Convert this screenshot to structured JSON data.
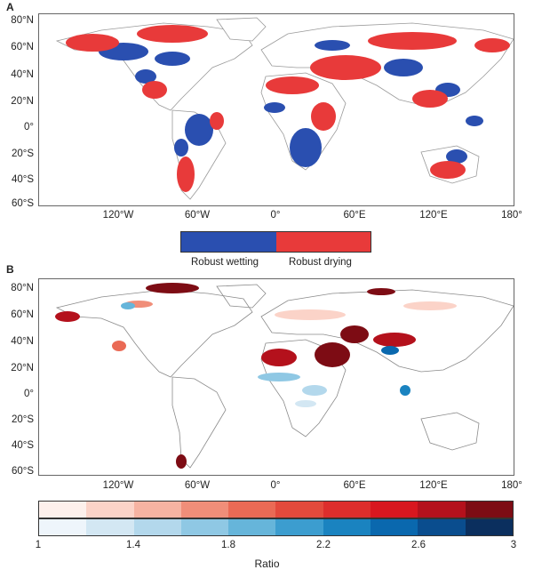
{
  "panelA": {
    "letter": "A",
    "lat_labels": [
      "80°N",
      "60°N",
      "40°N",
      "20°N",
      "0°",
      "20°S",
      "40°S",
      "60°S"
    ],
    "lon_labels": [
      "120°W",
      "60°W",
      "0°",
      "60°E",
      "120°E",
      "180°"
    ],
    "legend": [
      {
        "label": "Robust wetting",
        "color": "#2a4fb0"
      },
      {
        "label": "Robust drying",
        "color": "#e83a3a"
      }
    ]
  },
  "panelB": {
    "letter": "B",
    "lat_labels": [
      "80°N",
      "60°N",
      "40°N",
      "20°N",
      "0°",
      "20°S",
      "40°S",
      "60°S"
    ],
    "lon_labels": [
      "120°W",
      "60°W",
      "0°",
      "60°E",
      "120°E",
      "180°"
    ],
    "colorbar": {
      "title": "Ratio",
      "ticks": [
        "1",
        "1.4",
        "1.8",
        "2.2",
        "2.6",
        "3"
      ],
      "red_scale": [
        "#fdf0ec",
        "#fbd3c8",
        "#f6b3a2",
        "#f08e79",
        "#ea6a55",
        "#e34a3c",
        "#dd2e2c",
        "#d8171f",
        "#b4111c",
        "#7d0c14"
      ],
      "blue_scale": [
        "#eef5fb",
        "#d3e7f3",
        "#b3d8ec",
        "#8fc8e4",
        "#66b5da",
        "#3c9dcf",
        "#1a83c0",
        "#0a68ae",
        "#0a4d8e",
        "#0b2f5e"
      ]
    }
  }
}
